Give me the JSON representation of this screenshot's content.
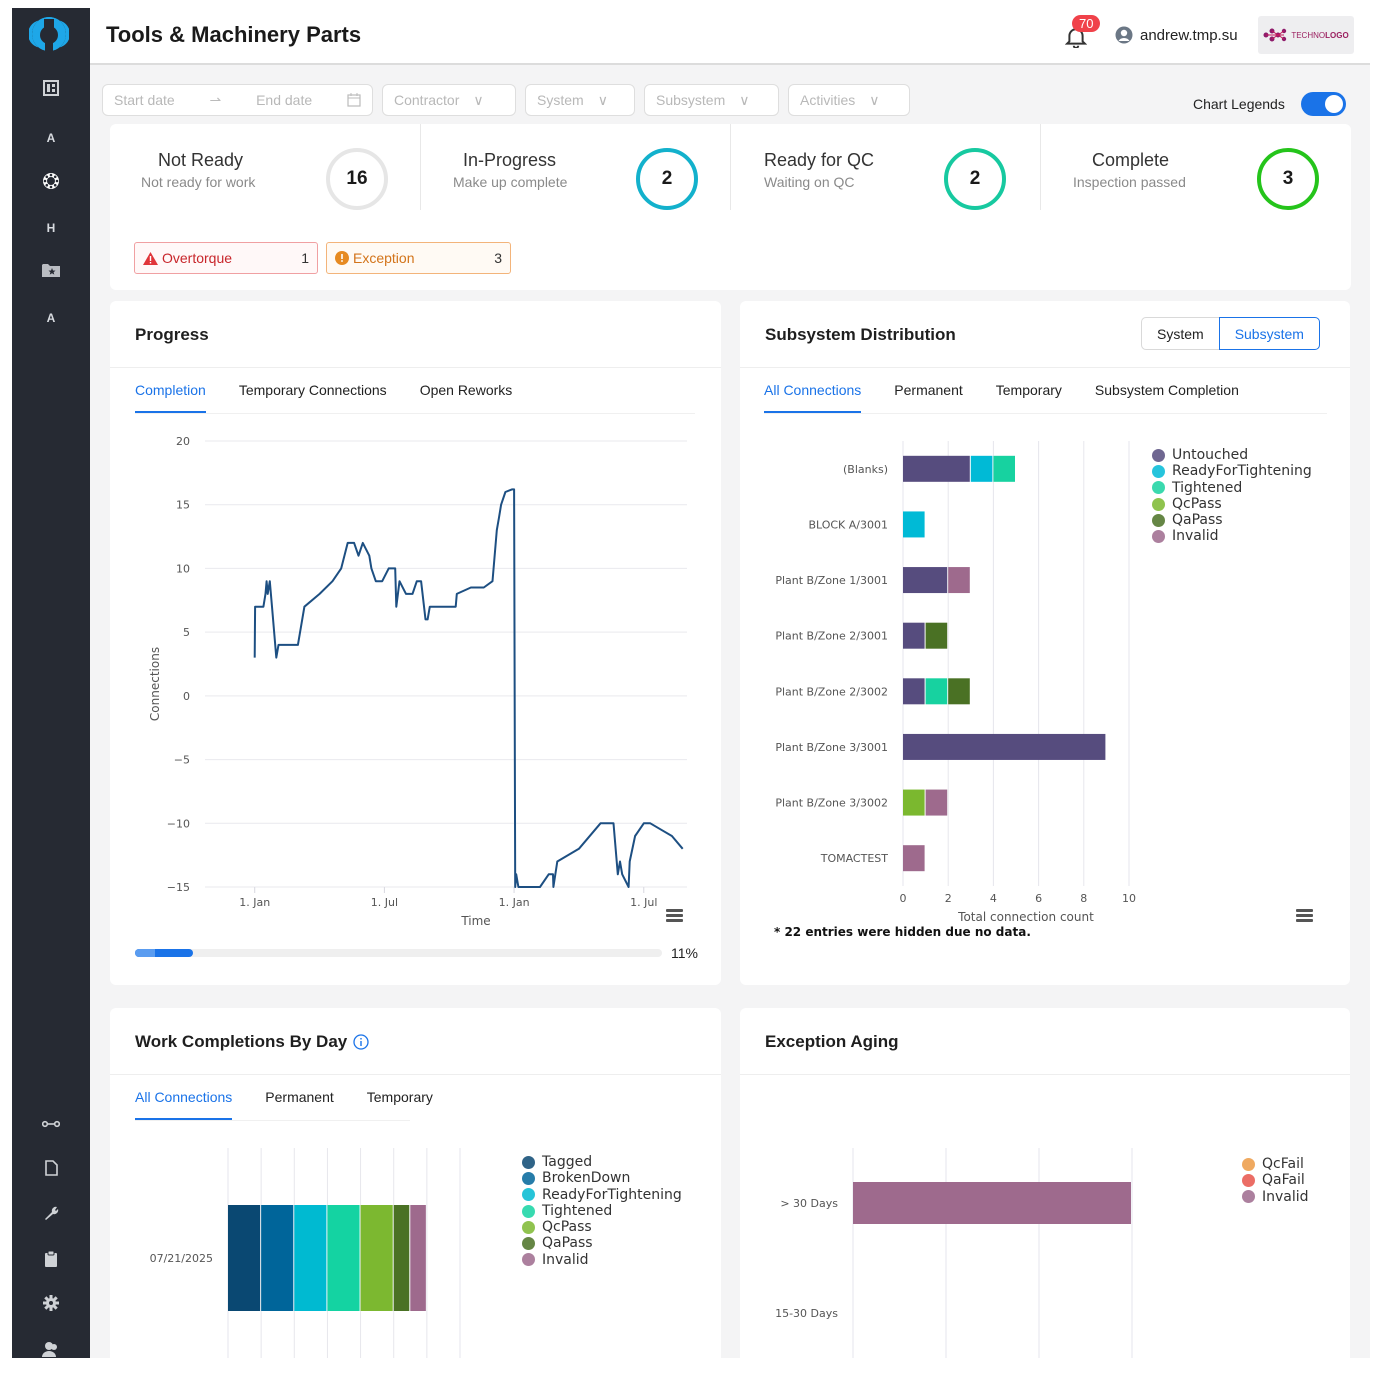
{
  "app": {
    "title": "Tools & Machinery Parts",
    "notifications_count": "70",
    "username": "andrew.tmp.su",
    "brand_label_light": "TECHNO",
    "brand_label_bold": "LOGO"
  },
  "sidebar": {
    "items": [
      {
        "name": "dashboard",
        "icon": "dashboard-icon",
        "label": ""
      },
      {
        "name": "a-item-1",
        "icon": "letter-a-icon",
        "label": "A"
      },
      {
        "name": "parts",
        "icon": "bearing-icon",
        "label": ""
      },
      {
        "name": "h-item",
        "icon": "letter-h-icon",
        "label": "H"
      },
      {
        "name": "favorites",
        "icon": "star-folder-icon",
        "label": ""
      },
      {
        "name": "a-item-2",
        "icon": "letter-a-icon",
        "label": "A"
      },
      {
        "name": "connections",
        "icon": "connection-icon",
        "label": ""
      },
      {
        "name": "documents",
        "icon": "document-icon",
        "label": ""
      },
      {
        "name": "tools",
        "icon": "wrench-icon",
        "label": ""
      },
      {
        "name": "clipboard",
        "icon": "clipboard-icon",
        "label": ""
      },
      {
        "name": "settings",
        "icon": "gear-icon",
        "label": ""
      },
      {
        "name": "users",
        "icon": "users-icon",
        "label": ""
      }
    ]
  },
  "filters": {
    "start_date_placeholder": "Start date",
    "end_date_placeholder": "End date",
    "contractor": "Contractor",
    "system": "System",
    "subsystem": "Subsystem",
    "activities": "Activities",
    "chart_legends_label": "Chart Legends",
    "chart_legends_on": true
  },
  "stats": [
    {
      "title": "Not Ready",
      "subtitle": "Not ready for work",
      "value": "16",
      "color": "#e6e6e6"
    },
    {
      "title": "In-Progress",
      "subtitle": "Make up complete",
      "value": "2",
      "color": "#13b1cc"
    },
    {
      "title": "Ready for QC",
      "subtitle": "Waiting on QC",
      "value": "2",
      "color": "#17c9a0"
    },
    {
      "title": "Complete",
      "subtitle": "Inspection passed",
      "value": "3",
      "color": "#25c41b"
    }
  ],
  "alerts": [
    {
      "label": "Overtorque",
      "count": "1",
      "icon": "warning-triangle-icon",
      "color": "#d93035"
    },
    {
      "label": "Exception",
      "count": "3",
      "icon": "exclamation-circle-icon",
      "color": "#e07e1a"
    }
  ],
  "progress": {
    "title": "Progress",
    "tabs": [
      "Completion",
      "Temporary Connections",
      "Open Reworks"
    ],
    "active_tab": 0,
    "percent_label": "11%",
    "percent": 11
  },
  "subsystem_distribution": {
    "title": "Subsystem Distribution",
    "toggle": [
      "System",
      "Subsystem"
    ],
    "toggle_active": 1,
    "tabs": [
      "All Connections",
      "Permanent",
      "Temporary",
      "Subsystem Completion"
    ],
    "active_tab": 0,
    "footnote": "* 22 entries were hidden due no data."
  },
  "work_completions": {
    "title": "Work Completions By Day",
    "tabs": [
      "All Connections",
      "Permanent",
      "Temporary"
    ],
    "active_tab": 0
  },
  "exception_aging": {
    "title": "Exception Aging"
  },
  "chart_data": [
    {
      "id": "progress-completion",
      "type": "line",
      "title": "",
      "xlabel": "Time",
      "ylabel": "Connections",
      "ylim": [
        -15,
        20
      ],
      "yticks": [
        20,
        15,
        10,
        5,
        0,
        -5,
        -10,
        -15
      ],
      "xticks": [
        "1. Jan",
        "1. Jul",
        "1. Jan",
        "1. Jul"
      ],
      "grid": true,
      "series": [
        {
          "name": "Completion",
          "color": "#1d4f82",
          "x_months": [
            0,
            0.02,
            0.4,
            0.5,
            0.55,
            0.6,
            0.7,
            0.8,
            1.0,
            1.1,
            1.4,
            1.5,
            2.0,
            2.3,
            3.0,
            3.6,
            4.0,
            4.3,
            4.6,
            4.8,
            5.0,
            5.3,
            5.4,
            5.6,
            5.9,
            6.2,
            6.5,
            6.55,
            6.7,
            7.0,
            7.3,
            7.5,
            7.7,
            7.9,
            8.0,
            8.1,
            9.3,
            9.35,
            10.0,
            10.6,
            11.0,
            11.2,
            11.3,
            11.4,
            11.6,
            11.9,
            12.0,
            12.05,
            12.1,
            12.2,
            12.3,
            12.4,
            13.2,
            13.6,
            13.8,
            13.82,
            14.0,
            14.5,
            15.0,
            16.0,
            16.6,
            16.8,
            16.9,
            17.0,
            17.3,
            17.35,
            17.6,
            18.0,
            18.3,
            18.8,
            19.3,
            19.8
          ],
          "values": [
            3,
            7,
            7,
            8,
            9,
            8,
            9,
            7,
            3,
            4,
            4,
            4,
            4,
            7,
            8,
            9,
            10,
            12,
            12,
            11,
            12,
            11,
            10,
            9,
            9,
            10,
            10,
            7,
            9,
            8,
            8,
            9,
            9,
            6,
            6,
            7,
            7,
            8,
            8.5,
            8.5,
            9,
            13,
            14,
            15,
            16,
            16.2,
            16.2,
            -15,
            -14,
            -15,
            -15,
            -15,
            -15,
            -14,
            -14,
            -15,
            -13,
            -12.5,
            -12,
            -10,
            -10,
            -14,
            -13,
            -14,
            -15,
            -13,
            -11,
            -10,
            -10,
            -10.5,
            -11,
            -12
          ]
        }
      ]
    },
    {
      "id": "subsystem-distribution",
      "type": "bar",
      "orientation": "horizontal",
      "stacked": true,
      "xlabel": "Total connection count",
      "xlim": [
        0,
        10
      ],
      "xticks": [
        0,
        2,
        4,
        6,
        8,
        10
      ],
      "categories": [
        "(Blanks)",
        "BLOCK A/3001",
        "Plant B/Zone 1/3001",
        "Plant B/Zone 2/3001",
        "Plant B/Zone 2/3002",
        "Plant B/Zone 3/3001",
        "Plant B/Zone 3/3002",
        "TOMACTEST"
      ],
      "legend_position": "right",
      "series": [
        {
          "name": "Untouched",
          "color": "#564c7e",
          "values": [
            3,
            0,
            2,
            1,
            1,
            9,
            0,
            0
          ]
        },
        {
          "name": "ReadyForTightening",
          "color": "#00bad6",
          "values": [
            1,
            1,
            0,
            0,
            0,
            0,
            0,
            0
          ]
        },
        {
          "name": "Tightened",
          "color": "#17d2a0",
          "values": [
            1,
            0,
            0,
            0,
            1,
            0,
            0,
            0
          ]
        },
        {
          "name": "QcPass",
          "color": "#7bb82f",
          "values": [
            0,
            0,
            0,
            0,
            0,
            0,
            1,
            0
          ]
        },
        {
          "name": "QaPass",
          "color": "#4a7124",
          "values": [
            0,
            0,
            0,
            1,
            1,
            0,
            0,
            0
          ]
        },
        {
          "name": "Invalid",
          "color": "#9e6a8d",
          "values": [
            0,
            0,
            1,
            0,
            0,
            0,
            1,
            1
          ]
        }
      ]
    },
    {
      "id": "work-completions-by-day",
      "type": "bar",
      "orientation": "horizontal",
      "stacked": true,
      "categories": [
        "07/21/2025"
      ],
      "xlim": [
        0,
        7
      ],
      "legend_position": "right",
      "series": [
        {
          "name": "Tagged",
          "color": "#0a4872",
          "values": [
            1
          ]
        },
        {
          "name": "BrokenDown",
          "color": "#00659a",
          "values": [
            1
          ]
        },
        {
          "name": "ReadyForTightening",
          "color": "#00bad1",
          "values": [
            1
          ]
        },
        {
          "name": "Tightened",
          "color": "#14d3a2",
          "values": [
            1
          ]
        },
        {
          "name": "QcPass",
          "color": "#7cb830",
          "values": [
            1
          ]
        },
        {
          "name": "QaPass",
          "color": "#4a7124",
          "values": [
            0.5
          ]
        },
        {
          "name": "Invalid",
          "color": "#9e6a8d",
          "values": [
            0.5
          ]
        }
      ]
    },
    {
      "id": "exception-aging",
      "type": "bar",
      "orientation": "horizontal",
      "stacked": true,
      "categories": [
        "> 30 Days",
        "15-30 Days"
      ],
      "xlim": [
        0,
        4
      ],
      "legend_position": "right",
      "series": [
        {
          "name": "QcFail",
          "color": "#ec9a44",
          "values": [
            0,
            0
          ]
        },
        {
          "name": "QaFail",
          "color": "#e8534a",
          "values": [
            0,
            0
          ]
        },
        {
          "name": "Invalid",
          "color": "#9e6a8d",
          "values": [
            3,
            0
          ]
        }
      ]
    }
  ]
}
